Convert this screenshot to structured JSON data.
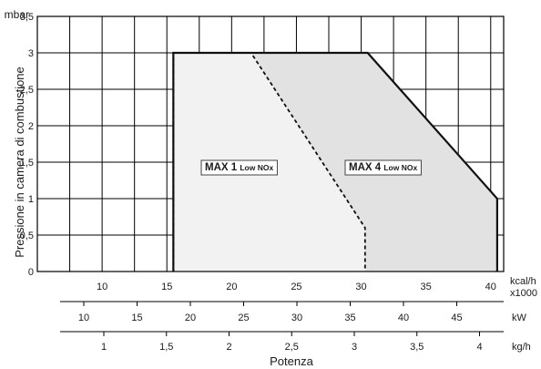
{
  "chart_data": {
    "type": "area",
    "title": "",
    "ylabel": "Pressione in camera di combustione",
    "y_unit": "mbar",
    "xlabel": "Potenza",
    "ylim": [
      0,
      3.5
    ],
    "y_ticks": [
      "0",
      "0,5",
      "1",
      "1,5",
      "2",
      "2,5",
      "3",
      "3,5"
    ],
    "grid": true,
    "x_axes": [
      {
        "unit_lines": [
          "kcal/h",
          "x1000"
        ],
        "range": [
          5,
          41
        ],
        "ticks": [
          10,
          15,
          20,
          25,
          30,
          35,
          40
        ],
        "tick_labels": [
          "10",
          "15",
          "20",
          "25",
          "30",
          "35",
          "40"
        ]
      },
      {
        "unit_lines": [
          "kW"
        ],
        "ticks": [
          10,
          15,
          20,
          25,
          30,
          35,
          40,
          45
        ],
        "tick_labels": [
          "10",
          "15",
          "20",
          "25",
          "30",
          "35",
          "40",
          "45"
        ]
      },
      {
        "unit_lines": [
          "kg/h"
        ],
        "ticks": [
          1,
          1.5,
          2,
          2.5,
          3,
          3.5,
          4
        ],
        "tick_labels": [
          "1",
          "1,5",
          "2",
          "2,5",
          "3",
          "3,5",
          "4"
        ]
      }
    ],
    "series": [
      {
        "name": "MAX 4 Low NOx",
        "label_main": "MAX 4",
        "label_sub": "Low NOx",
        "style": "solid",
        "fill": "#e2e2e2",
        "x": [
          15.5,
          15.5,
          30.5,
          40.5,
          40.5
        ],
        "y": [
          0,
          3,
          3,
          1,
          0
        ]
      },
      {
        "name": "MAX 1 Low NOx",
        "label_main": "MAX 1",
        "label_sub": "Low NOx",
        "style": "dashed",
        "fill": "#f2f2f2",
        "x": [
          15.5,
          15.5,
          21.5,
          30.3,
          30.3
        ],
        "y": [
          0,
          3,
          3,
          0.6,
          0
        ]
      }
    ]
  }
}
